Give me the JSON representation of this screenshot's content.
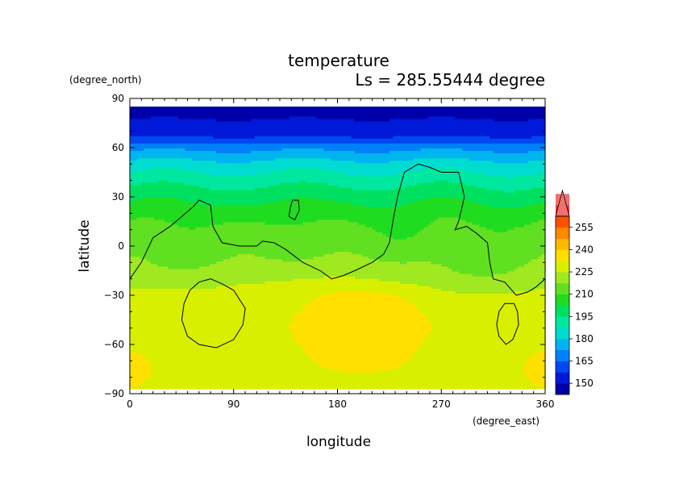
{
  "chart_data": {
    "type": "heatmap",
    "title": "temperature",
    "subtitle": "Ls = 285.55444 degree",
    "xlabel": "longitude",
    "ylabel": "latitude",
    "x_units": "(degree_east)",
    "y_units": "(degree_north)",
    "xlim": [
      0,
      360
    ],
    "ylim": [
      -90,
      90
    ],
    "x_ticks": [
      0,
      90,
      180,
      270,
      360
    ],
    "y_ticks": [
      -90,
      -60,
      -30,
      0,
      30,
      60,
      90
    ],
    "x_tick_labels": [
      "0",
      "90",
      "180",
      "270",
      "360"
    ],
    "y_tick_labels": [
      "−90",
      "−60",
      "−30",
      "0",
      "30",
      "60",
      "90"
    ],
    "data_lat_range": [
      -87,
      85
    ],
    "colorbar": {
      "levels": [
        150,
        165,
        180,
        195,
        210,
        225,
        240,
        255
      ],
      "labels": [
        "150",
        "165",
        "180",
        "195",
        "210",
        "225",
        "240",
        "255"
      ],
      "step": 7.5,
      "min": 142.5,
      "max": 262.5,
      "extend": "max",
      "colors": [
        "#0000a8",
        "#0018d8",
        "#0048f0",
        "#0080f8",
        "#00b4f0",
        "#00dcd0",
        "#00e8a0",
        "#00e060",
        "#20dc20",
        "#60e020",
        "#a0e820",
        "#d8f000",
        "#ffe000",
        "#ffb800",
        "#ff8800",
        "#ff5000",
        "#f83030",
        "#f07070"
      ]
    },
    "zonal_profile": [
      {
        "lat": 85,
        "t": 148
      },
      {
        "lat": 70,
        "t": 152
      },
      {
        "lat": 65,
        "t": 160
      },
      {
        "lat": 60,
        "t": 170
      },
      {
        "lat": 50,
        "t": 183
      },
      {
        "lat": 40,
        "t": 192
      },
      {
        "lat": 30,
        "t": 200
      },
      {
        "lat": 20,
        "t": 207
      },
      {
        "lat": 10,
        "t": 212
      },
      {
        "lat": 0,
        "t": 215
      },
      {
        "lat": -15,
        "t": 220
      },
      {
        "lat": -30,
        "t": 227
      },
      {
        "lat": -45,
        "t": 229
      },
      {
        "lat": -60,
        "t": 229
      },
      {
        "lat": -75,
        "t": 231
      },
      {
        "lat": -87,
        "t": 231
      }
    ],
    "anomalies": [
      {
        "lon": 200,
        "lat": -50,
        "dlon": 62,
        "dlat": 20,
        "dt": 9
      },
      {
        "lon": 200,
        "lat": -33,
        "dlon": 45,
        "dlat": 10,
        "dt": 5
      },
      {
        "lon": 300,
        "lat": -15,
        "dlon": 40,
        "dlat": 18,
        "dt": -4
      },
      {
        "lon": 240,
        "lat": 10,
        "dlon": 25,
        "dlat": 10,
        "dt": -3
      },
      {
        "lon": 45,
        "lat": -5,
        "dlon": 35,
        "dlat": 12,
        "dt": -3
      },
      {
        "lon": 150,
        "lat": -20,
        "dlon": 60,
        "dlat": 8,
        "dt": 2
      },
      {
        "lon": 0,
        "lat": -72,
        "dlon": 20,
        "dlat": 14,
        "dt": 4
      },
      {
        "lon": 360,
        "lat": -72,
        "dlon": 20,
        "dlat": 14,
        "dt": 4
      }
    ],
    "topography_contours": [
      {
        "name": "continent",
        "points": [
          [
            0,
            -20
          ],
          [
            10,
            -10
          ],
          [
            20,
            5
          ],
          [
            35,
            12
          ],
          [
            45,
            18
          ],
          [
            55,
            24
          ],
          [
            60,
            28
          ],
          [
            70,
            25
          ],
          [
            72,
            12
          ],
          [
            80,
            2
          ],
          [
            95,
            0
          ],
          [
            110,
            0
          ],
          [
            115,
            3
          ],
          [
            125,
            2
          ],
          [
            135,
            -2
          ],
          [
            150,
            -10
          ],
          [
            165,
            -15
          ],
          [
            175,
            -20
          ],
          [
            185,
            -18
          ],
          [
            195,
            -15
          ],
          [
            210,
            -10
          ],
          [
            220,
            -5
          ],
          [
            225,
            2
          ],
          [
            228,
            15
          ],
          [
            232,
            30
          ],
          [
            238,
            45
          ],
          [
            250,
            50
          ],
          [
            260,
            48
          ],
          [
            270,
            45
          ],
          [
            285,
            45
          ],
          [
            290,
            30
          ],
          [
            285,
            15
          ],
          [
            282,
            10
          ],
          [
            292,
            12
          ],
          [
            300,
            8
          ],
          [
            310,
            2
          ],
          [
            312,
            -10
          ],
          [
            315,
            -20
          ],
          [
            325,
            -22
          ],
          [
            335,
            -30
          ],
          [
            345,
            -28
          ],
          [
            352,
            -25
          ],
          [
            360,
            -20
          ]
        ]
      },
      {
        "name": "island",
        "points": [
          [
            138,
            18
          ],
          [
            143,
            16
          ],
          [
            147,
            22
          ],
          [
            146,
            28
          ],
          [
            141,
            28
          ],
          [
            139,
            23
          ],
          [
            138,
            18
          ]
        ]
      },
      {
        "name": "south-basin-west",
        "points": [
          [
            45,
            -45
          ],
          [
            47,
            -35
          ],
          [
            52,
            -27
          ],
          [
            60,
            -22
          ],
          [
            70,
            -20
          ],
          [
            80,
            -23
          ],
          [
            90,
            -27
          ],
          [
            100,
            -38
          ],
          [
            98,
            -48
          ],
          [
            90,
            -57
          ],
          [
            75,
            -62
          ],
          [
            60,
            -60
          ],
          [
            50,
            -55
          ],
          [
            45,
            -45
          ]
        ]
      },
      {
        "name": "south-basin-east",
        "points": [
          [
            318,
            -48
          ],
          [
            320,
            -40
          ],
          [
            325,
            -35
          ],
          [
            333,
            -35
          ],
          [
            336,
            -40
          ],
          [
            337,
            -48
          ],
          [
            332,
            -57
          ],
          [
            326,
            -60
          ],
          [
            320,
            -55
          ],
          [
            318,
            -48
          ]
        ]
      }
    ]
  }
}
